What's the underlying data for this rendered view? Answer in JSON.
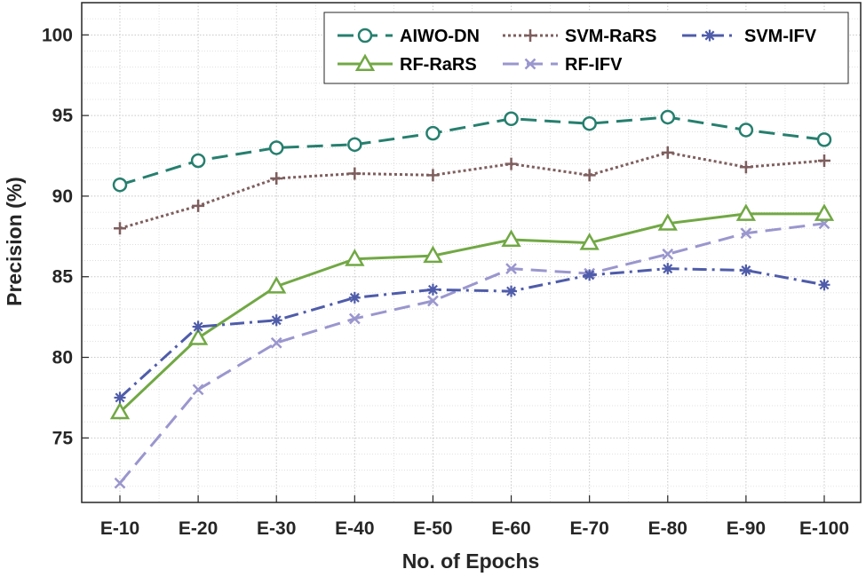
{
  "chart_data": {
    "type": "line",
    "title": "",
    "xlabel": "No. of Epochs",
    "ylabel": "Precision (%)",
    "categories": [
      "E-10",
      "E-20",
      "E-30",
      "E-40",
      "E-50",
      "E-60",
      "E-70",
      "E-80",
      "E-90",
      "E-100"
    ],
    "ylim": [
      71,
      102
    ],
    "yticks": [
      75,
      80,
      85,
      90,
      95,
      100
    ],
    "grid": true,
    "legend_position": "top-right",
    "series": [
      {
        "name": "AIWO-DN",
        "color": "#267F6E",
        "marker": "circle",
        "dash": "dashed",
        "values": [
          90.7,
          92.2,
          93.0,
          93.2,
          93.9,
          94.8,
          94.5,
          94.9,
          94.1,
          93.5
        ]
      },
      {
        "name": "SVM-RaRS",
        "color": "#7E5E5E",
        "marker": "plus",
        "dash": "dotted",
        "values": [
          88.0,
          89.4,
          91.1,
          91.4,
          91.3,
          92.0,
          91.3,
          92.7,
          91.8,
          92.2
        ]
      },
      {
        "name": "SVM-IFV",
        "color": "#4F5CAA",
        "marker": "asterisk",
        "dash": "dashdot",
        "values": [
          77.5,
          81.9,
          82.3,
          83.7,
          84.2,
          84.1,
          85.1,
          85.5,
          85.4,
          84.5
        ]
      },
      {
        "name": "RF-RaRS",
        "color": "#71A844",
        "marker": "triangle",
        "dash": "solid",
        "values": [
          76.6,
          81.2,
          84.4,
          86.1,
          86.3,
          87.3,
          87.1,
          88.3,
          88.9,
          88.9
        ]
      },
      {
        "name": "RF-IFV",
        "color": "#9A96CE",
        "marker": "x",
        "dash": "dashed",
        "values": [
          72.2,
          78.0,
          80.9,
          82.4,
          83.5,
          85.5,
          85.2,
          86.4,
          87.7,
          88.3
        ]
      }
    ]
  }
}
